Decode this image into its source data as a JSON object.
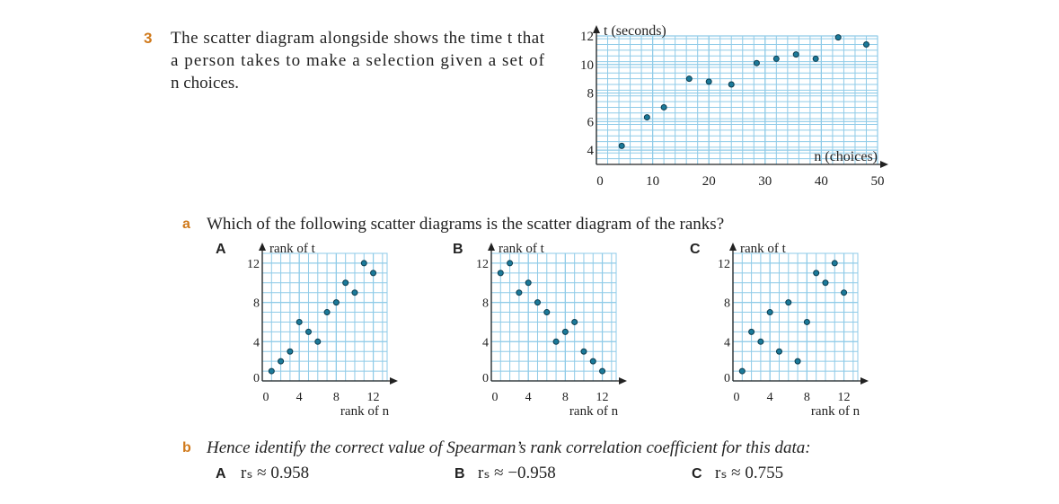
{
  "question": {
    "number": "3",
    "text_lines": [
      "The scatter diagram alongside shows the time t that",
      "a person takes to make a selection given a set of",
      "n choices."
    ]
  },
  "part_a": {
    "letter": "a",
    "text": "Which of the following scatter diagrams is the scatter diagram of the ranks?"
  },
  "part_b": {
    "letter": "b",
    "text": "Hence identify the correct value of Spearman’s rank correlation coefficient for this data:",
    "options": [
      {
        "letter": "A",
        "text": "rₛ ≈ 0.958"
      },
      {
        "letter": "B",
        "text": "rₛ ≈ −0.958"
      },
      {
        "letter": "C",
        "text": "rₛ ≈ 0.755"
      }
    ]
  },
  "chart_data": [
    {
      "type": "scatter",
      "x_label": "n (choices)",
      "y_label": "t (seconds)",
      "xlim": [
        0,
        50
      ],
      "ylim": [
        3,
        12
      ],
      "xticks": [
        0,
        10,
        20,
        30,
        40,
        50
      ],
      "yticks": [
        4,
        6,
        8,
        10,
        12
      ],
      "grid": true,
      "color": "#1b7a9a",
      "x": [
        4.5,
        9,
        12,
        16.5,
        20,
        24,
        28.5,
        32,
        35.5,
        39,
        43,
        48
      ],
      "values": [
        4.3,
        6.3,
        7,
        9,
        8.8,
        8.6,
        10.1,
        10.4,
        10.7,
        10.4,
        11.9,
        11.4
      ]
    },
    {
      "type": "scatter",
      "label": "A",
      "x_label": "rank of n",
      "y_label": "rank of t",
      "xlim": [
        0,
        13.5
      ],
      "ylim": [
        0,
        13
      ],
      "xticks": [
        0,
        4,
        8,
        12
      ],
      "yticks": [
        0,
        4,
        8,
        12
      ],
      "grid": true,
      "color": "#1b7a9a",
      "x": [
        1,
        2,
        3,
        4,
        5,
        6,
        7,
        8,
        9,
        10,
        11,
        12
      ],
      "values": [
        1,
        2,
        3,
        6,
        5,
        4,
        7,
        8,
        10,
        9,
        12,
        11
      ]
    },
    {
      "type": "scatter",
      "label": "B",
      "x_label": "rank of n",
      "y_label": "rank of t",
      "xlim": [
        0,
        13.5
      ],
      "ylim": [
        0,
        13
      ],
      "xticks": [
        0,
        4,
        8,
        12
      ],
      "yticks": [
        0,
        4,
        8,
        12
      ],
      "grid": true,
      "color": "#1b7a9a",
      "x": [
        1,
        2,
        3,
        4,
        5,
        6,
        7,
        8,
        9,
        10,
        11,
        12
      ],
      "values": [
        11,
        12,
        9,
        10,
        8,
        7,
        4,
        5,
        6,
        3,
        2,
        1
      ]
    },
    {
      "type": "scatter",
      "label": "C",
      "x_label": "rank of n",
      "y_label": "rank of t",
      "xlim": [
        0,
        13.5
      ],
      "ylim": [
        0,
        13
      ],
      "xticks": [
        0,
        4,
        8,
        12
      ],
      "yticks": [
        0,
        4,
        8,
        12
      ],
      "grid": true,
      "color": "#1b7a9a",
      "x": [
        1,
        2,
        3,
        4,
        5,
        6,
        7,
        8,
        9,
        10,
        11,
        12
      ],
      "values": [
        1,
        5,
        4,
        7,
        3,
        8,
        2,
        6,
        11,
        10,
        12,
        9
      ]
    }
  ]
}
